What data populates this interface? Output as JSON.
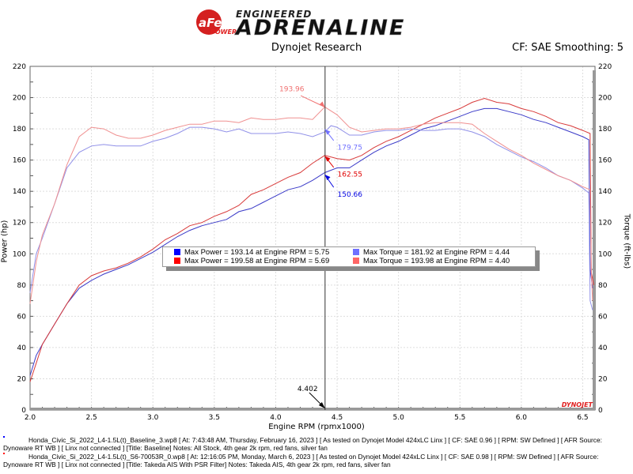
{
  "header": {
    "logo_text": "aFe POWER ENGINEERED ADRENALINE",
    "title": "Dynojet Research",
    "cf_text": "CF: SAE Smoothing: 5"
  },
  "legend": [
    {
      "text": "Max Power = 193.14 at Engine RPM = 5.75",
      "color": "#0000ff"
    },
    {
      "text": "Max Torque = 181.92 at Engine RPM = 4.44",
      "color": "#7070ff"
    },
    {
      "text": "Max Power = 199.58 at Engine RPM = 5.69",
      "color": "#ff0000"
    },
    {
      "text": "Max Torque = 193.98 at Engine RPM = 4.40",
      "color": "#ff6666"
    }
  ],
  "footer": [
    {
      "line1": "Honda_Civic_Si_2022_L4-1.5L(t)_Baseline_3.wp8 [ At: 7:43:48 AM, Thursday, February 16, 2023 ] [ As tested on Dynojet Model 424xLC Linx ] [ CF: SAE 0.96 ] [ RPM: SW Defined ] [ AFR Source: Dynoware RT WB ] [ Linx not",
      "line2": "connected ] [Title: Baseline]  Notes: All Stock, 4th gear 2k rpm, red fans, silver fan",
      "color": "#0000ff"
    },
    {
      "line1": "Honda_Civic_Si_2022_L4-1.5L(t)_S6-70053R_0.wp8 [ At: 12:16:05 PM, Monday, March 6, 2023 ] [ As tested on Dynojet Model 424xLC Linx ] [ CF: SAE 0.98 ] [ RPM: SW Defined ] [ AFR Source: Dynoware RT WB ] [ Linx not",
      "line2": "connected ] [Title: Takeda AIS With PSR Filter]  Notes: Takeda AIS, 4th gear 2k rpm, red fans, silver fan",
      "color": "#ff0000"
    }
  ],
  "chart_data": {
    "type": "line",
    "xlabel": "Engine RPM (rpmx1000)",
    "ylabel": "Power (hp)",
    "y2label": "Torque (ft-lbs)",
    "xlim": [
      2.0,
      6.6
    ],
    "ylim": [
      0,
      220
    ],
    "y2lim": [
      0,
      220
    ],
    "xticks": [
      "2.0",
      "2.5",
      "3.0",
      "3.5",
      "4.0",
      "4.5",
      "5.0",
      "5.5",
      "6.0",
      "6.5"
    ],
    "yticks": [
      "0",
      "20",
      "40",
      "60",
      "80",
      "100",
      "120",
      "140",
      "160",
      "180",
      "200",
      "220"
    ],
    "grid": true,
    "brand_mark": "DYNOJET",
    "cursor": {
      "x": 4.402,
      "label": "4.402"
    },
    "annotations": [
      {
        "label": "193.96",
        "x": 4.4,
        "y": 193.96,
        "color": "#f07070"
      },
      {
        "label": "179.75",
        "x": 4.4,
        "y": 179.75,
        "color": "#7070ff"
      },
      {
        "label": "162.55",
        "x": 4.4,
        "y": 162.55,
        "color": "#e00000"
      },
      {
        "label": "150.66",
        "x": 4.4,
        "y": 150.66,
        "color": "#0000e0"
      }
    ],
    "series": [
      {
        "color": "#3a3ac8",
        "x": [
          2.0,
          2.05,
          2.1,
          2.2,
          2.3,
          2.4,
          2.5,
          2.6,
          2.7,
          2.8,
          2.9,
          3.0,
          3.1,
          3.2,
          3.3,
          3.4,
          3.5,
          3.6,
          3.7,
          3.8,
          3.9,
          4.0,
          4.1,
          4.2,
          4.3,
          4.4,
          4.5,
          4.6,
          4.7,
          4.8,
          4.9,
          5.0,
          5.1,
          5.2,
          5.3,
          5.4,
          5.5,
          5.6,
          5.7,
          5.8,
          5.9,
          6.0,
          6.1,
          6.2,
          6.3,
          6.4,
          6.5,
          6.55,
          6.56,
          6.58
        ],
        "y": [
          22,
          35,
          42,
          55,
          68,
          78,
          83,
          87,
          90,
          93,
          97,
          101,
          106,
          111,
          115,
          118,
          120,
          122,
          127,
          129,
          133,
          137,
          141,
          143,
          147,
          152,
          155,
          155,
          160,
          165,
          169,
          172,
          176,
          180,
          182,
          185,
          188,
          191,
          193,
          193,
          191,
          189,
          186,
          184,
          181,
          178,
          175,
          173,
          90,
          78
        ]
      },
      {
        "color": "#d83a3a",
        "x": [
          2.0,
          2.05,
          2.1,
          2.2,
          2.3,
          2.4,
          2.5,
          2.6,
          2.7,
          2.8,
          2.9,
          3.0,
          3.1,
          3.2,
          3.3,
          3.4,
          3.5,
          3.6,
          3.7,
          3.8,
          3.9,
          4.0,
          4.1,
          4.2,
          4.3,
          4.4,
          4.5,
          4.6,
          4.7,
          4.8,
          4.9,
          5.0,
          5.1,
          5.2,
          5.3,
          5.4,
          5.5,
          5.6,
          5.7,
          5.8,
          5.9,
          6.0,
          6.1,
          6.2,
          6.3,
          6.4,
          6.5,
          6.56,
          6.57,
          6.59
        ],
        "y": [
          18,
          30,
          42,
          55,
          68,
          80,
          86,
          89,
          91,
          94,
          98,
          103,
          109,
          113,
          118,
          120,
          124,
          127,
          131,
          138,
          141,
          145,
          149,
          152,
          158,
          163,
          161,
          160,
          163,
          168,
          172,
          175,
          179,
          183,
          187,
          190,
          193,
          197,
          199.5,
          197,
          196,
          193,
          191,
          188,
          184,
          182,
          179,
          177,
          88,
          80
        ]
      },
      {
        "color": "#9090e8",
        "x": [
          2.0,
          2.05,
          2.1,
          2.2,
          2.3,
          2.4,
          2.5,
          2.6,
          2.7,
          2.8,
          2.9,
          3.0,
          3.1,
          3.2,
          3.3,
          3.4,
          3.5,
          3.6,
          3.7,
          3.8,
          3.9,
          4.0,
          4.1,
          4.2,
          4.3,
          4.4,
          4.45,
          4.5,
          4.6,
          4.7,
          4.8,
          4.9,
          5.0,
          5.1,
          5.2,
          5.3,
          5.4,
          5.5,
          5.6,
          5.7,
          5.8,
          5.9,
          6.0,
          6.1,
          6.2,
          6.3,
          6.4,
          6.5,
          6.55,
          6.56,
          6.58
        ],
        "y": [
          75,
          100,
          110,
          132,
          155,
          165,
          169,
          170,
          169,
          169,
          169,
          172,
          174,
          177,
          181,
          181,
          180,
          178,
          180,
          177,
          177,
          177,
          178,
          177,
          175,
          178,
          182,
          181,
          176,
          176,
          178,
          179,
          179,
          180,
          179,
          179,
          180,
          180,
          178,
          175,
          170,
          166,
          162,
          159,
          155,
          150,
          147,
          142,
          139,
          70,
          64
        ]
      },
      {
        "color": "#f09090",
        "x": [
          2.0,
          2.05,
          2.1,
          2.2,
          2.3,
          2.4,
          2.5,
          2.6,
          2.7,
          2.8,
          2.9,
          3.0,
          3.1,
          3.2,
          3.3,
          3.4,
          3.5,
          3.6,
          3.7,
          3.8,
          3.9,
          4.0,
          4.1,
          4.2,
          4.3,
          4.4,
          4.5,
          4.6,
          4.7,
          4.8,
          4.9,
          5.0,
          5.1,
          5.2,
          5.3,
          5.4,
          5.5,
          5.6,
          5.7,
          5.8,
          5.9,
          6.0,
          6.1,
          6.2,
          6.3,
          6.4,
          6.5,
          6.56,
          6.57,
          6.58
        ],
        "y": [
          68,
          95,
          112,
          132,
          157,
          175,
          181,
          180,
          176,
          174,
          174,
          176,
          179,
          181,
          183,
          183,
          185,
          185,
          184,
          187,
          186,
          186,
          187,
          187,
          186,
          194,
          189,
          181,
          178,
          179,
          180,
          180,
          181,
          183,
          184,
          184,
          184,
          183,
          177,
          172,
          167,
          163,
          158,
          154,
          150,
          147,
          143,
          141,
          88,
          70
        ]
      }
    ]
  }
}
